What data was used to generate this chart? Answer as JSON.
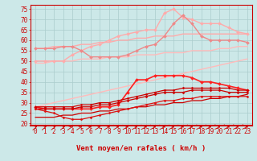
{
  "background_color": "#cce8e8",
  "grid_color": "#aacccc",
  "xlabel": "Vent moyen/en rafales ( km/h )",
  "xlim": [
    -0.5,
    23.5
  ],
  "ylim": [
    19,
    77
  ],
  "yticks": [
    20,
    25,
    30,
    35,
    40,
    45,
    50,
    55,
    60,
    65,
    70,
    75
  ],
  "xticks": [
    0,
    1,
    2,
    3,
    4,
    5,
    6,
    7,
    8,
    9,
    10,
    11,
    12,
    13,
    14,
    15,
    16,
    17,
    18,
    19,
    20,
    21,
    22,
    23
  ],
  "lines": [
    {
      "x": [
        0,
        1,
        2,
        3,
        4,
        5,
        6,
        7,
        8,
        9,
        10,
        11,
        12,
        13,
        14,
        15,
        16,
        17,
        18,
        19,
        20,
        21,
        22,
        23
      ],
      "y": [
        49,
        49,
        50,
        50,
        50,
        51,
        51,
        51,
        52,
        52,
        52,
        53,
        53,
        53,
        54,
        54,
        54,
        55,
        55,
        55,
        56,
        56,
        57,
        57
      ],
      "color": "#ffbbbb",
      "marker": null,
      "linewidth": 1.0,
      "linestyle": "-"
    },
    {
      "x": [
        0,
        1,
        2,
        3,
        4,
        5,
        6,
        7,
        8,
        9,
        10,
        11,
        12,
        13,
        14,
        15,
        16,
        17,
        18,
        19,
        20,
        21,
        22,
        23
      ],
      "y": [
        28,
        29,
        30,
        31,
        32,
        33,
        34,
        35,
        36,
        37,
        38,
        39,
        40,
        41,
        42,
        43,
        44,
        45,
        46,
        47,
        48,
        49,
        50,
        51
      ],
      "color": "#ffbbbb",
      "marker": null,
      "linewidth": 1.0,
      "linestyle": "-"
    },
    {
      "x": [
        0,
        1,
        2,
        3,
        4,
        5,
        6,
        7,
        8,
        9,
        10,
        11,
        12,
        13,
        14,
        15,
        16,
        17,
        18,
        19,
        20,
        21,
        22,
        23
      ],
      "y": [
        56,
        56,
        57,
        57,
        57,
        58,
        58,
        59,
        59,
        60,
        60,
        61,
        61,
        62,
        62,
        62,
        63,
        63,
        63,
        63,
        63,
        63,
        63,
        63
      ],
      "color": "#ffaaaa",
      "marker": null,
      "linewidth": 1.0,
      "linestyle": "-"
    },
    {
      "x": [
        0,
        1,
        2,
        3,
        4,
        5,
        6,
        7,
        8,
        9,
        10,
        11,
        12,
        13,
        14,
        15,
        16,
        17,
        18,
        19,
        20,
        21,
        22,
        23
      ],
      "y": [
        50,
        50,
        50,
        50,
        53,
        55,
        57,
        58,
        60,
        62,
        63,
        64,
        65,
        65,
        73,
        75,
        71,
        70,
        68,
        68,
        68,
        66,
        64,
        63
      ],
      "color": "#ffaaaa",
      "marker": "D",
      "markersize": 2,
      "linewidth": 1.0,
      "linestyle": "-"
    },
    {
      "x": [
        0,
        1,
        2,
        3,
        4,
        5,
        6,
        7,
        8,
        9,
        10,
        11,
        12,
        13,
        14,
        15,
        16,
        17,
        18,
        19,
        20,
        21,
        22,
        23
      ],
      "y": [
        56,
        56,
        56,
        57,
        57,
        55,
        52,
        52,
        52,
        52,
        53,
        55,
        57,
        58,
        62,
        68,
        72,
        68,
        62,
        60,
        60,
        60,
        60,
        59
      ],
      "color": "#ee8888",
      "marker": "D",
      "markersize": 2,
      "linewidth": 1.0,
      "linestyle": "-"
    },
    {
      "x": [
        0,
        1,
        2,
        3,
        4,
        5,
        6,
        7,
        8,
        9,
        10,
        11,
        12,
        13,
        14,
        15,
        16,
        17,
        18,
        19,
        20,
        21,
        22,
        23
      ],
      "y": [
        28,
        27,
        27,
        27,
        27,
        27,
        27,
        28,
        28,
        29,
        35,
        41,
        41,
        43,
        43,
        43,
        43,
        42,
        40,
        40,
        39,
        38,
        37,
        36
      ],
      "color": "#ff2020",
      "marker": "D",
      "markersize": 2,
      "linewidth": 1.2,
      "linestyle": "-"
    },
    {
      "x": [
        0,
        1,
        2,
        3,
        4,
        5,
        6,
        7,
        8,
        9,
        10,
        11,
        12,
        13,
        14,
        15,
        16,
        17,
        18,
        19,
        20,
        21,
        22,
        23
      ],
      "y": [
        28,
        28,
        28,
        28,
        28,
        29,
        29,
        30,
        30,
        31,
        32,
        33,
        34,
        35,
        36,
        36,
        37,
        37,
        37,
        37,
        37,
        37,
        36,
        36
      ],
      "color": "#cc0000",
      "marker": "D",
      "markersize": 1.5,
      "linewidth": 0.9,
      "linestyle": "-"
    },
    {
      "x": [
        0,
        1,
        2,
        3,
        4,
        5,
        6,
        7,
        8,
        9,
        10,
        11,
        12,
        13,
        14,
        15,
        16,
        17,
        18,
        19,
        20,
        21,
        22,
        23
      ],
      "y": [
        27,
        27,
        27,
        27,
        27,
        28,
        28,
        29,
        29,
        30,
        31,
        32,
        33,
        34,
        35,
        35,
        35,
        36,
        36,
        36,
        36,
        35,
        35,
        35
      ],
      "color": "#cc0000",
      "marker": "D",
      "markersize": 1.5,
      "linewidth": 0.9,
      "linestyle": "-"
    },
    {
      "x": [
        0,
        1,
        2,
        3,
        4,
        5,
        6,
        7,
        8,
        9,
        10,
        11,
        12,
        13,
        14,
        15,
        16,
        17,
        18,
        19,
        20,
        21,
        22,
        23
      ],
      "y": [
        23,
        23,
        23,
        24,
        24,
        25,
        25,
        26,
        26,
        27,
        27,
        28,
        28,
        29,
        29,
        30,
        30,
        31,
        31,
        32,
        32,
        33,
        33,
        34
      ],
      "color": "#cc0000",
      "marker": null,
      "linewidth": 0.9,
      "linestyle": "-"
    },
    {
      "x": [
        0,
        1,
        2,
        3,
        4,
        5,
        6,
        7,
        8,
        9,
        10,
        11,
        12,
        13,
        14,
        15,
        16,
        17,
        18,
        19,
        20,
        21,
        22,
        23
      ],
      "y": [
        27,
        26,
        25,
        23,
        22,
        22,
        23,
        24,
        25,
        26,
        27,
        28,
        29,
        30,
        31,
        31,
        32,
        32,
        33,
        33,
        33,
        33,
        33,
        33
      ],
      "color": "#dd1111",
      "marker": "D",
      "markersize": 1.5,
      "linewidth": 0.9,
      "linestyle": "-"
    }
  ],
  "label_fontsize": 6.5,
  "tick_fontsize": 5.5
}
